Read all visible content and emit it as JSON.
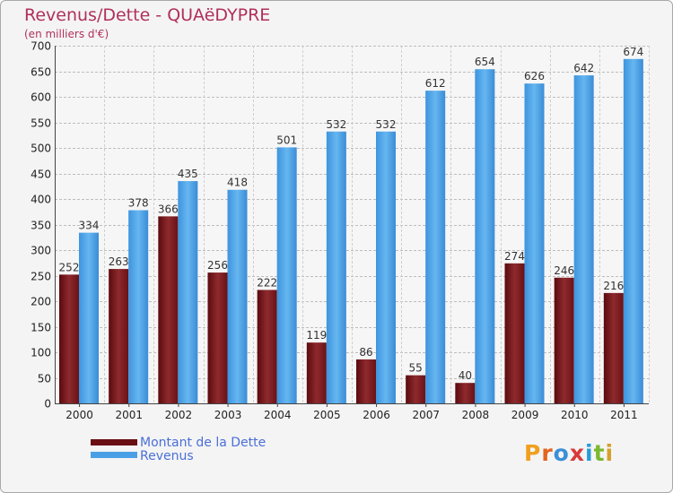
{
  "chart_data": {
    "type": "bar",
    "title": "Revenus/Dette - QUAëDYPRE",
    "subtitle": "(en milliers d'€)",
    "categories": [
      "2000",
      "2001",
      "2002",
      "2003",
      "2004",
      "2005",
      "2006",
      "2007",
      "2008",
      "2009",
      "2010",
      "2011"
    ],
    "series": [
      {
        "name": "Montant de la Dette",
        "color": "#7a1418",
        "values": [
          252,
          263,
          366,
          256,
          222,
          119,
          86,
          55,
          40,
          274,
          246,
          216
        ]
      },
      {
        "name": "Revenus",
        "color": "#4aa0e6",
        "values": [
          334,
          378,
          435,
          418,
          501,
          532,
          532,
          612,
          654,
          626,
          642,
          674
        ]
      }
    ],
    "ylim": [
      0,
      700
    ],
    "yticks": [
      0,
      50,
      100,
      150,
      200,
      250,
      300,
      350,
      400,
      450,
      500,
      550,
      600,
      650,
      700
    ],
    "grid": true,
    "legend_position": "bottom-left",
    "logo_text": "Proxiti"
  }
}
